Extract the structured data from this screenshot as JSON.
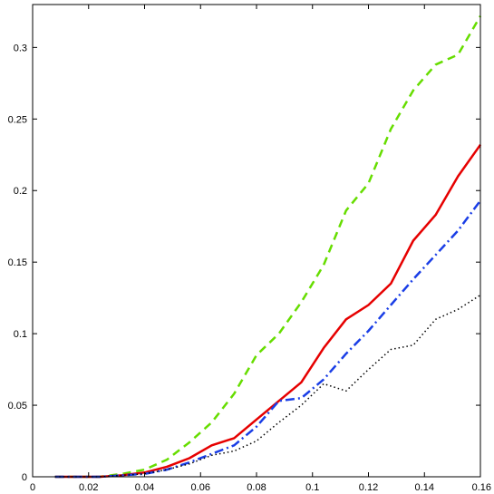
{
  "chart_data": {
    "type": "line",
    "title": "",
    "xlabel": "",
    "ylabel": "",
    "xlim": [
      0,
      0.16
    ],
    "ylim": [
      0,
      0.33
    ],
    "grid": false,
    "x_ticks": [
      0,
      0.02,
      0.04,
      0.06,
      0.08,
      0.1,
      0.12,
      0.14,
      0.16
    ],
    "x_tick_labels": [
      "0",
      "0.02",
      "0.04",
      "0.06",
      "0.08",
      "0.1",
      "0.12",
      "0.14",
      "0.16"
    ],
    "y_ticks": [
      0,
      0.05,
      0.1,
      0.15,
      0.2,
      0.25,
      0.3
    ],
    "y_tick_labels": [
      "0",
      "0.05",
      "0.1",
      "0.15",
      "0.2",
      "0.25",
      "0.3"
    ],
    "series": [
      {
        "color": "#66dd00",
        "style": "dashed",
        "points": [
          [
            0.008,
            0
          ],
          [
            0.016,
            0
          ],
          [
            0.024,
            0
          ],
          [
            0.032,
            0.002
          ],
          [
            0.04,
            0.005
          ],
          [
            0.048,
            0.012
          ],
          [
            0.056,
            0.024
          ],
          [
            0.064,
            0.038
          ],
          [
            0.072,
            0.058
          ],
          [
            0.08,
            0.085
          ],
          [
            0.088,
            0.1
          ],
          [
            0.096,
            0.122
          ],
          [
            0.104,
            0.148
          ],
          [
            0.112,
            0.186
          ],
          [
            0.12,
            0.205
          ],
          [
            0.128,
            0.243
          ],
          [
            0.136,
            0.27
          ],
          [
            0.144,
            0.288
          ],
          [
            0.152,
            0.295
          ],
          [
            0.16,
            0.322
          ]
        ]
      },
      {
        "color": "#e60000",
        "style": "solid",
        "points": [
          [
            0.008,
            0
          ],
          [
            0.016,
            0
          ],
          [
            0.024,
            0
          ],
          [
            0.032,
            0.001
          ],
          [
            0.04,
            0.003
          ],
          [
            0.048,
            0.007
          ],
          [
            0.056,
            0.013
          ],
          [
            0.064,
            0.022
          ],
          [
            0.072,
            0.027
          ],
          [
            0.08,
            0.04
          ],
          [
            0.088,
            0.053
          ],
          [
            0.096,
            0.066
          ],
          [
            0.104,
            0.09
          ],
          [
            0.112,
            0.11
          ],
          [
            0.12,
            0.12
          ],
          [
            0.128,
            0.135
          ],
          [
            0.136,
            0.165
          ],
          [
            0.144,
            0.183
          ],
          [
            0.152,
            0.21
          ],
          [
            0.16,
            0.232
          ]
        ]
      },
      {
        "color": "#1a3ee6",
        "style": "dashdot",
        "points": [
          [
            0.008,
            0
          ],
          [
            0.016,
            0
          ],
          [
            0.024,
            0
          ],
          [
            0.032,
            0.001
          ],
          [
            0.04,
            0.002
          ],
          [
            0.048,
            0.005
          ],
          [
            0.056,
            0.01
          ],
          [
            0.064,
            0.016
          ],
          [
            0.072,
            0.022
          ],
          [
            0.08,
            0.035
          ],
          [
            0.088,
            0.053
          ],
          [
            0.096,
            0.055
          ],
          [
            0.104,
            0.068
          ],
          [
            0.112,
            0.086
          ],
          [
            0.12,
            0.102
          ],
          [
            0.128,
            0.12
          ],
          [
            0.136,
            0.138
          ],
          [
            0.144,
            0.155
          ],
          [
            0.152,
            0.172
          ],
          [
            0.16,
            0.193
          ]
        ]
      },
      {
        "color": "#000000",
        "style": "dotted",
        "points": [
          [
            0.008,
            0
          ],
          [
            0.016,
            0
          ],
          [
            0.024,
            0
          ],
          [
            0.032,
            0.001
          ],
          [
            0.04,
            0.002
          ],
          [
            0.048,
            0.005
          ],
          [
            0.056,
            0.009
          ],
          [
            0.064,
            0.015
          ],
          [
            0.072,
            0.018
          ],
          [
            0.08,
            0.025
          ],
          [
            0.088,
            0.038
          ],
          [
            0.096,
            0.05
          ],
          [
            0.104,
            0.065
          ],
          [
            0.112,
            0.06
          ],
          [
            0.12,
            0.075
          ],
          [
            0.128,
            0.089
          ],
          [
            0.136,
            0.092
          ],
          [
            0.144,
            0.11
          ],
          [
            0.152,
            0.117
          ],
          [
            0.16,
            0.127
          ]
        ]
      }
    ]
  }
}
